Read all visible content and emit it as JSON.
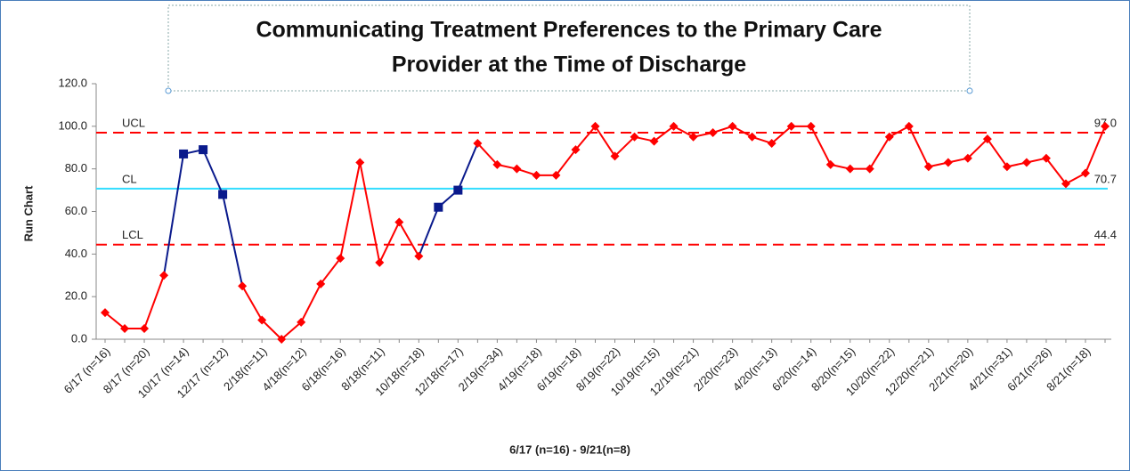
{
  "chart_data": {
    "type": "control",
    "title": [
      "Communicating Treatment Preferences to the Primary Care",
      "Provider at the Time of Discharge"
    ],
    "y_label": "Run Chart",
    "x_label": "6/17 (n=16) - 9/21(n=8)",
    "categories": [
      "6/17 (n=16)",
      null,
      "8/17 (n=20)",
      null,
      "10/17 (n=14)",
      null,
      "12/17 (n=12)",
      null,
      "2/18(n=11)",
      null,
      "4/18(n=12)",
      null,
      "6/18(n=16)",
      null,
      "8/18(n=11)",
      null,
      "10/18(n=18)",
      null,
      "12/18(n=17)",
      null,
      "2/19(n=34)",
      null,
      "4/19(n=18)",
      null,
      "6/19(n=18)",
      null,
      "8/19(n=22)",
      null,
      "10/19(n=15)",
      null,
      "12/19(n=21)",
      null,
      "2/20(n=23)",
      null,
      "4/20(n=13)",
      null,
      "6/20(n=14)",
      null,
      "8/20(n=15)",
      null,
      "10/20(n=22)",
      null,
      "12/20(n=21)",
      null,
      "2/21(n=20)",
      null,
      "4/21(n=31)",
      null,
      "6/21(n=26)",
      null,
      "8/21(n=18)",
      null
    ],
    "series": [
      {
        "color": "#ff0000",
        "values": [
          12.5,
          5,
          5,
          30,
          87,
          89,
          68,
          25,
          9,
          0,
          8,
          26,
          38,
          83,
          36,
          55,
          39,
          62,
          70,
          92,
          82,
          80,
          77,
          77,
          89,
          100,
          86,
          95,
          93,
          100,
          95,
          97,
          100,
          95,
          92,
          100,
          100,
          82,
          80,
          80,
          95,
          100,
          81,
          83,
          85,
          94,
          81,
          83,
          85,
          73,
          78,
          100
        ],
        "highlight_color": "#0a1a8c",
        "highlighted": [
          4,
          5,
          6,
          17,
          18
        ]
      }
    ],
    "control_lines": [
      {
        "name": "UCL",
        "value": 97,
        "value_label": "97.0",
        "color": "#ff0000",
        "dashed": true
      },
      {
        "name": "CL",
        "value": 70.7,
        "value_label": "70.7",
        "color": "#33ddff",
        "dashed": false
      },
      {
        "name": "LCL",
        "value": 44.4,
        "value_label": "44.4",
        "color": "#ff0000",
        "dashed": true
      }
    ],
    "ylim": [
      0,
      120
    ],
    "yticks": [
      {
        "value": 0,
        "label": "0.0"
      },
      {
        "value": 20,
        "label": "20.0"
      },
      {
        "value": 40,
        "label": "40.0"
      },
      {
        "value": 60,
        "label": "60.0"
      },
      {
        "value": 80,
        "label": "80.0"
      },
      {
        "value": 100,
        "label": "100.0"
      },
      {
        "value": 120,
        "label": "120.0"
      }
    ],
    "grid": false
  }
}
